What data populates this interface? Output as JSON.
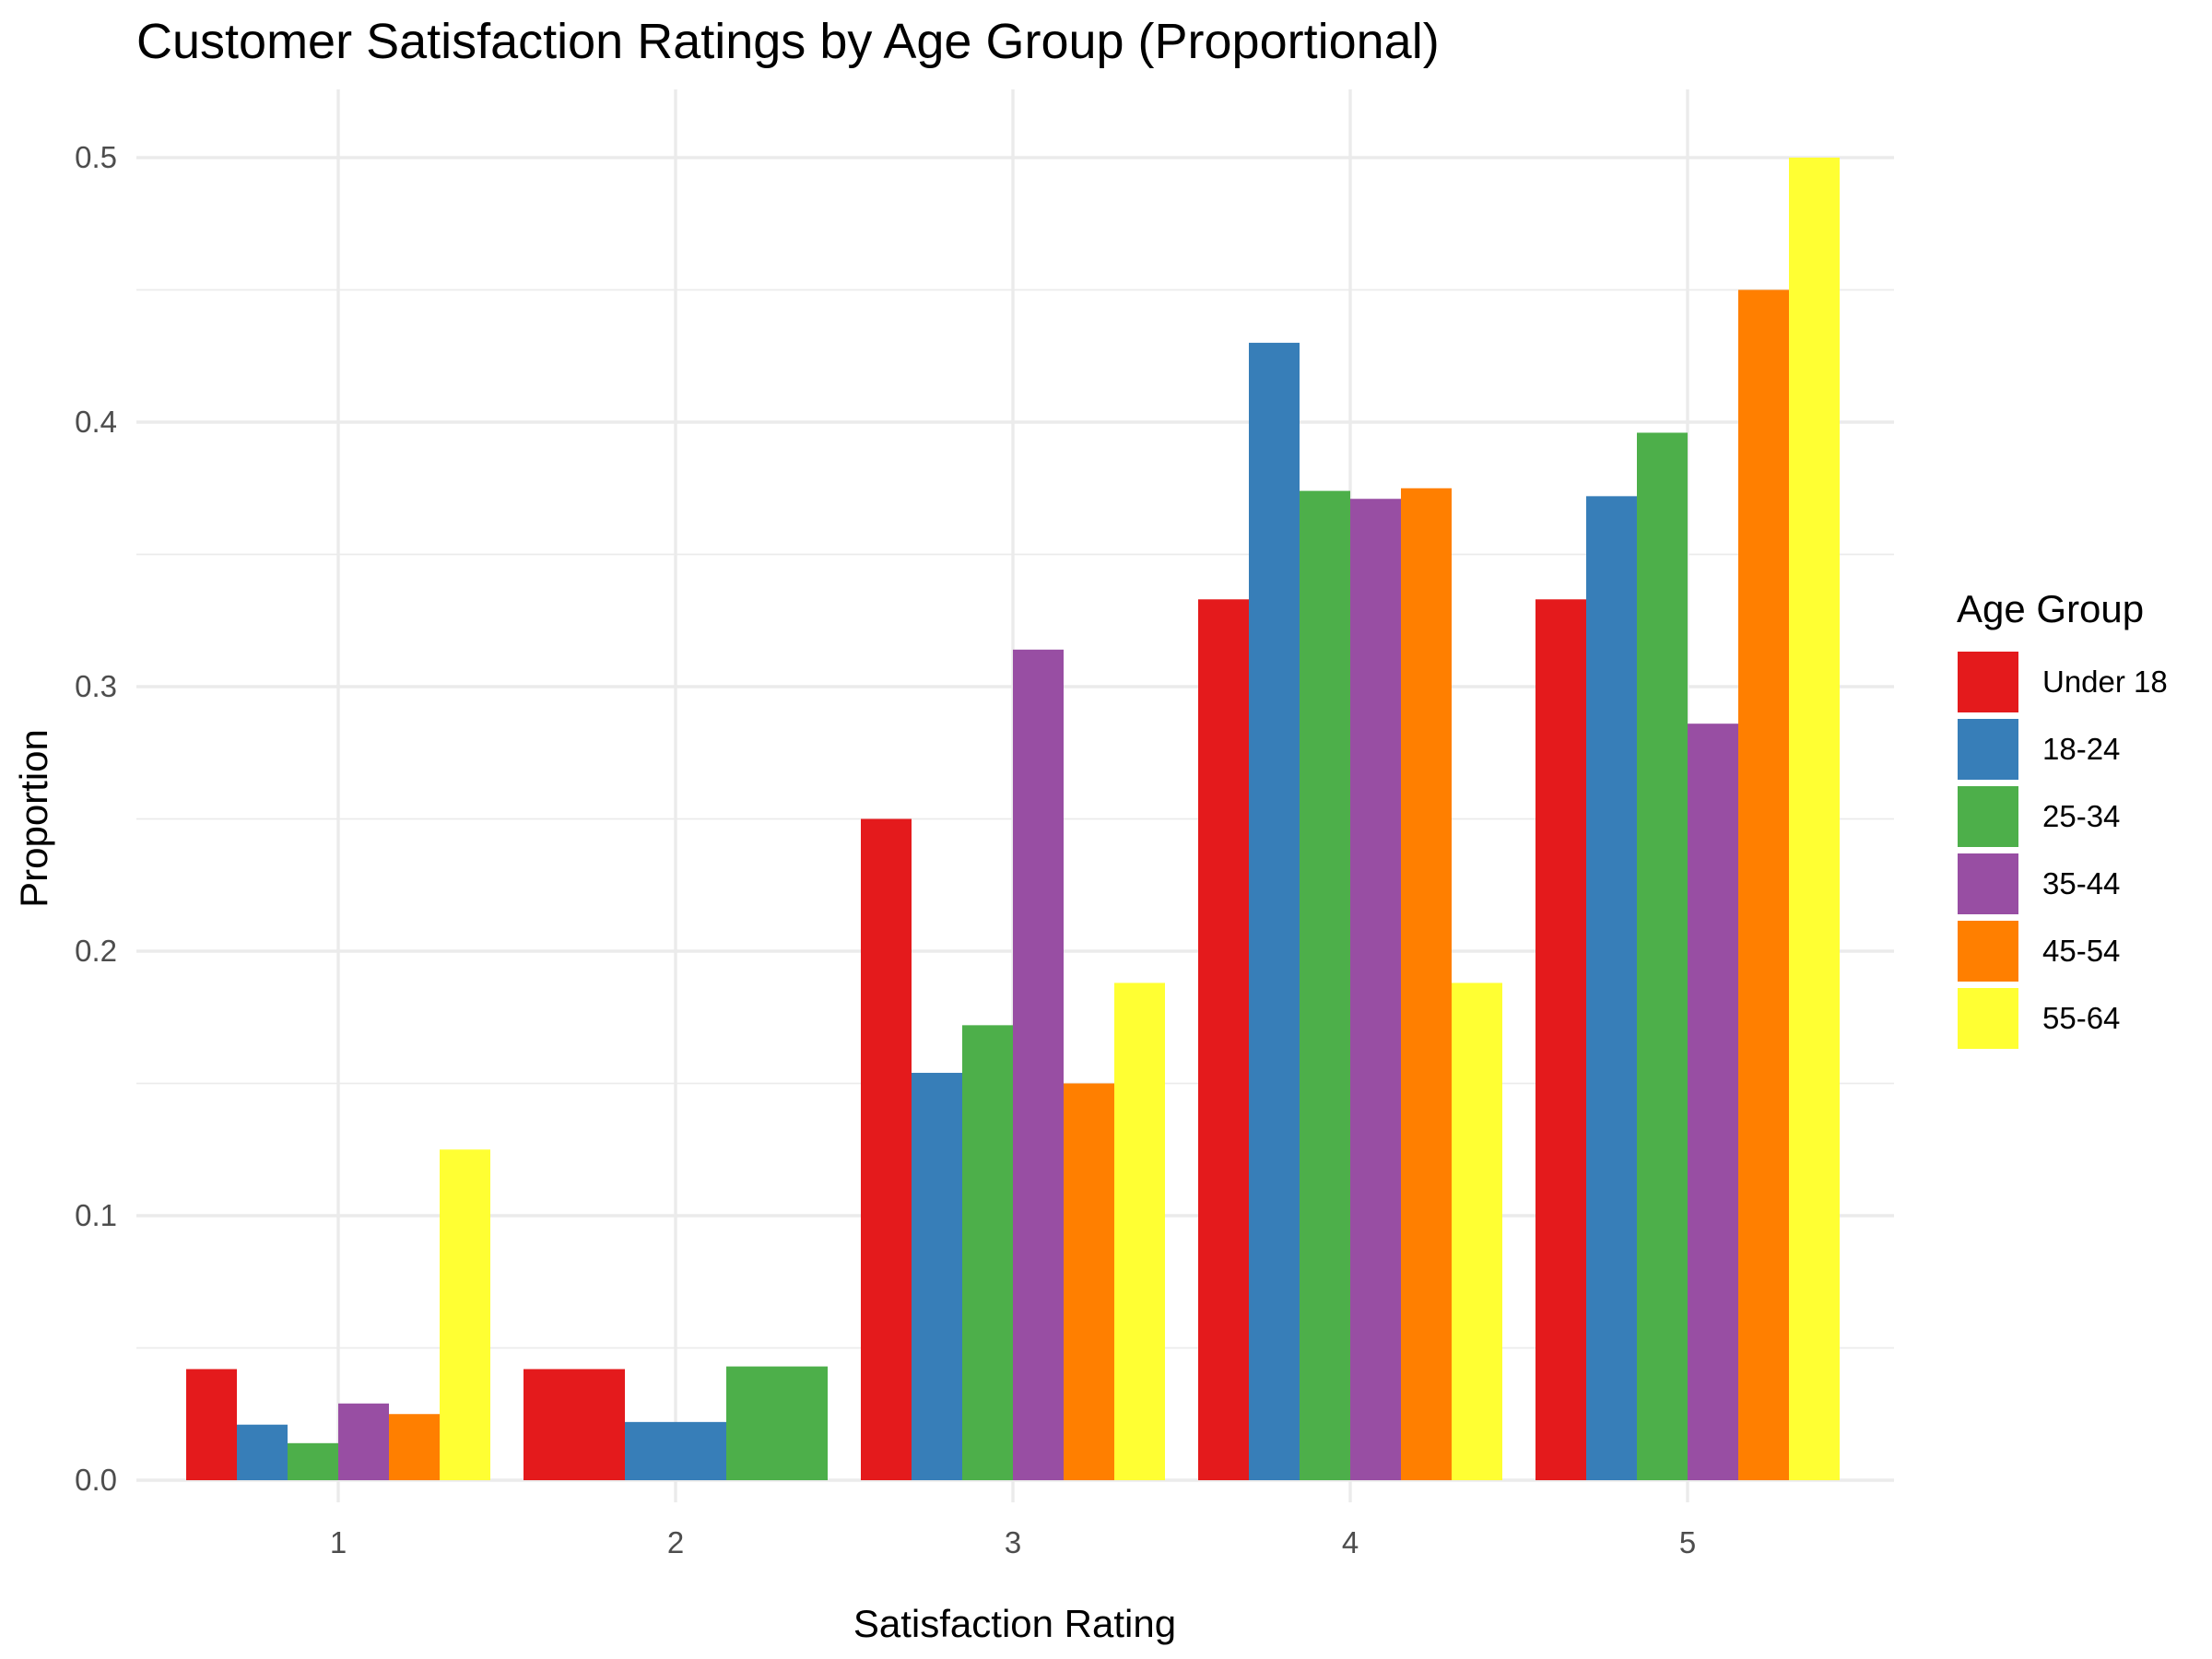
{
  "chart_data": {
    "type": "bar",
    "title": "Customer Satisfaction Ratings by Age Group (Proportional)",
    "xlabel": "Satisfaction Rating",
    "ylabel": "Proportion",
    "categories": [
      "1",
      "2",
      "3",
      "4",
      "5"
    ],
    "ylim": [
      0,
      0.5
    ],
    "yticks": [
      "0.0",
      "0.1",
      "0.2",
      "0.3",
      "0.4",
      "0.5"
    ],
    "grid": true,
    "bar_position": "dodge",
    "legend": {
      "title": "Age Group",
      "placement": "right"
    },
    "series": [
      {
        "name": "Under 18",
        "color": "#E41A1C",
        "values": [
          0.042,
          0.042,
          0.25,
          0.333,
          0.333
        ]
      },
      {
        "name": "18-24",
        "color": "#377EB8",
        "values": [
          0.021,
          0.022,
          0.154,
          0.43,
          0.372
        ]
      },
      {
        "name": "25-34",
        "color": "#4DAF4A",
        "values": [
          0.014,
          0.043,
          0.172,
          0.374,
          0.396
        ]
      },
      {
        "name": "35-44",
        "color": "#984EA3",
        "values": [
          0.029,
          null,
          0.314,
          0.371,
          0.286
        ]
      },
      {
        "name": "45-54",
        "color": "#FF7F00",
        "values": [
          0.025,
          null,
          0.15,
          0.375,
          0.45
        ]
      },
      {
        "name": "55-64",
        "color": "#FFFF33",
        "values": [
          0.125,
          null,
          0.188,
          0.188,
          0.5
        ]
      }
    ]
  }
}
